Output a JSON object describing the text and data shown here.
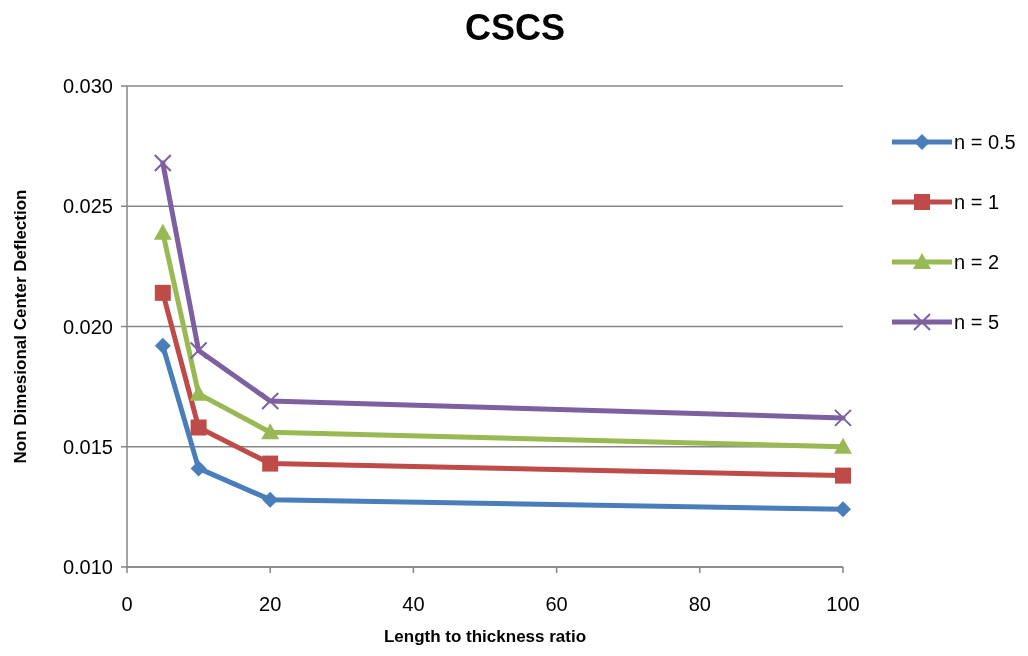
{
  "chart_data": {
    "type": "line",
    "title": "CSCS",
    "xlabel": "Length  to thickness ratio",
    "ylabel": "Non Dimesional Center Deflection",
    "x": [
      5,
      10,
      20,
      100
    ],
    "series": [
      {
        "name": "n = 0.5",
        "color": "#4a7ebb",
        "marker": "diamond",
        "values": [
          0.0192,
          0.0141,
          0.0128,
          0.0124
        ]
      },
      {
        "name": "n = 1",
        "color": "#be4b48",
        "marker": "square",
        "values": [
          0.0214,
          0.0158,
          0.0143,
          0.0138
        ]
      },
      {
        "name": "n = 2",
        "color": "#98b954",
        "marker": "triangle",
        "values": [
          0.0239,
          0.0172,
          0.0156,
          0.015
        ]
      },
      {
        "name": "n = 5",
        "color": "#7d60a0",
        "marker": "cross",
        "values": [
          0.0268,
          0.019,
          0.0169,
          0.0162
        ]
      }
    ],
    "xlim": [
      0,
      100
    ],
    "xticks": [
      0,
      20,
      40,
      60,
      80,
      100
    ],
    "ylim": [
      0.01,
      0.03
    ],
    "yticks": [
      {
        "value": 0.01,
        "label": "0.010"
      },
      {
        "value": 0.015,
        "label": "0.015"
      },
      {
        "value": 0.02,
        "label": "0.020"
      },
      {
        "value": 0.025,
        "label": "0.025"
      },
      {
        "value": 0.03,
        "label": "0.030"
      }
    ],
    "grid": "y",
    "legend": "right"
  }
}
